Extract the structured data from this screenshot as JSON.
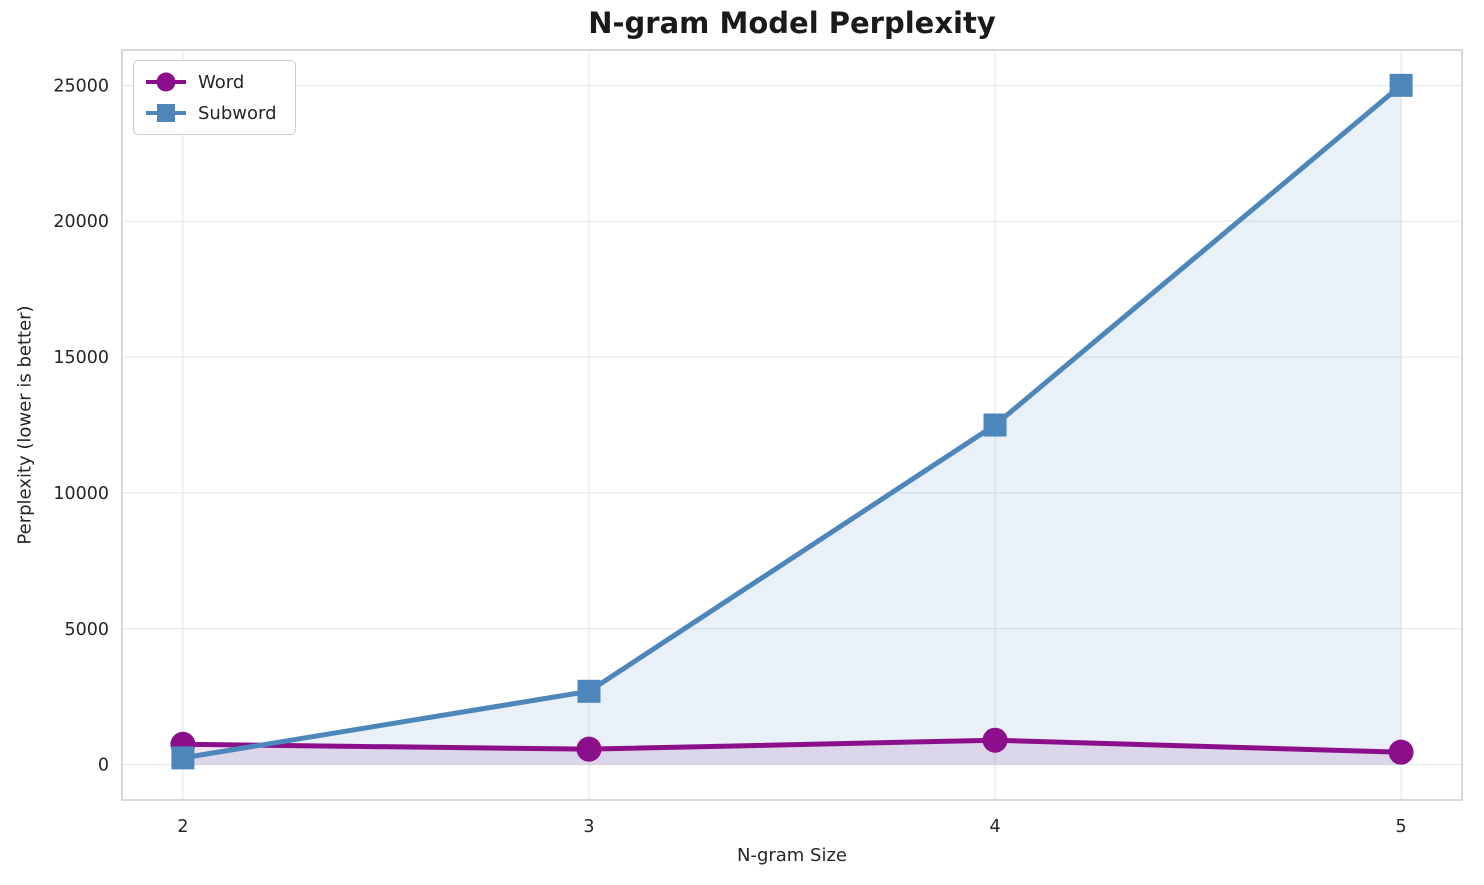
{
  "chart_data": {
    "type": "line",
    "title": "N-gram Model Perplexity",
    "xlabel": "N-gram Size",
    "ylabel": "Perplexity (lower is better)",
    "x": [
      2,
      3,
      4,
      5
    ],
    "series": [
      {
        "name": "Word",
        "values": [
          750,
          570,
          900,
          460
        ],
        "color": "#8b0f8b",
        "fill_alpha": 0.12,
        "marker": "circle"
      },
      {
        "name": "Subword",
        "values": [
          250,
          2700,
          12500,
          25000
        ],
        "color": "#4d86ba",
        "fill_alpha": 0.12,
        "marker": "square"
      }
    ],
    "xticks": [
      2,
      3,
      4,
      5
    ],
    "yticks": [
      0,
      5000,
      10000,
      15000,
      20000,
      25000
    ],
    "xlim": [
      1.85,
      5.15
    ],
    "ylim": [
      -1300,
      26300
    ],
    "grid": true,
    "legend_position": "upper left",
    "grid_color": "#e5e5e5",
    "spine_color": "#cccccc",
    "text_color": "#262626"
  }
}
